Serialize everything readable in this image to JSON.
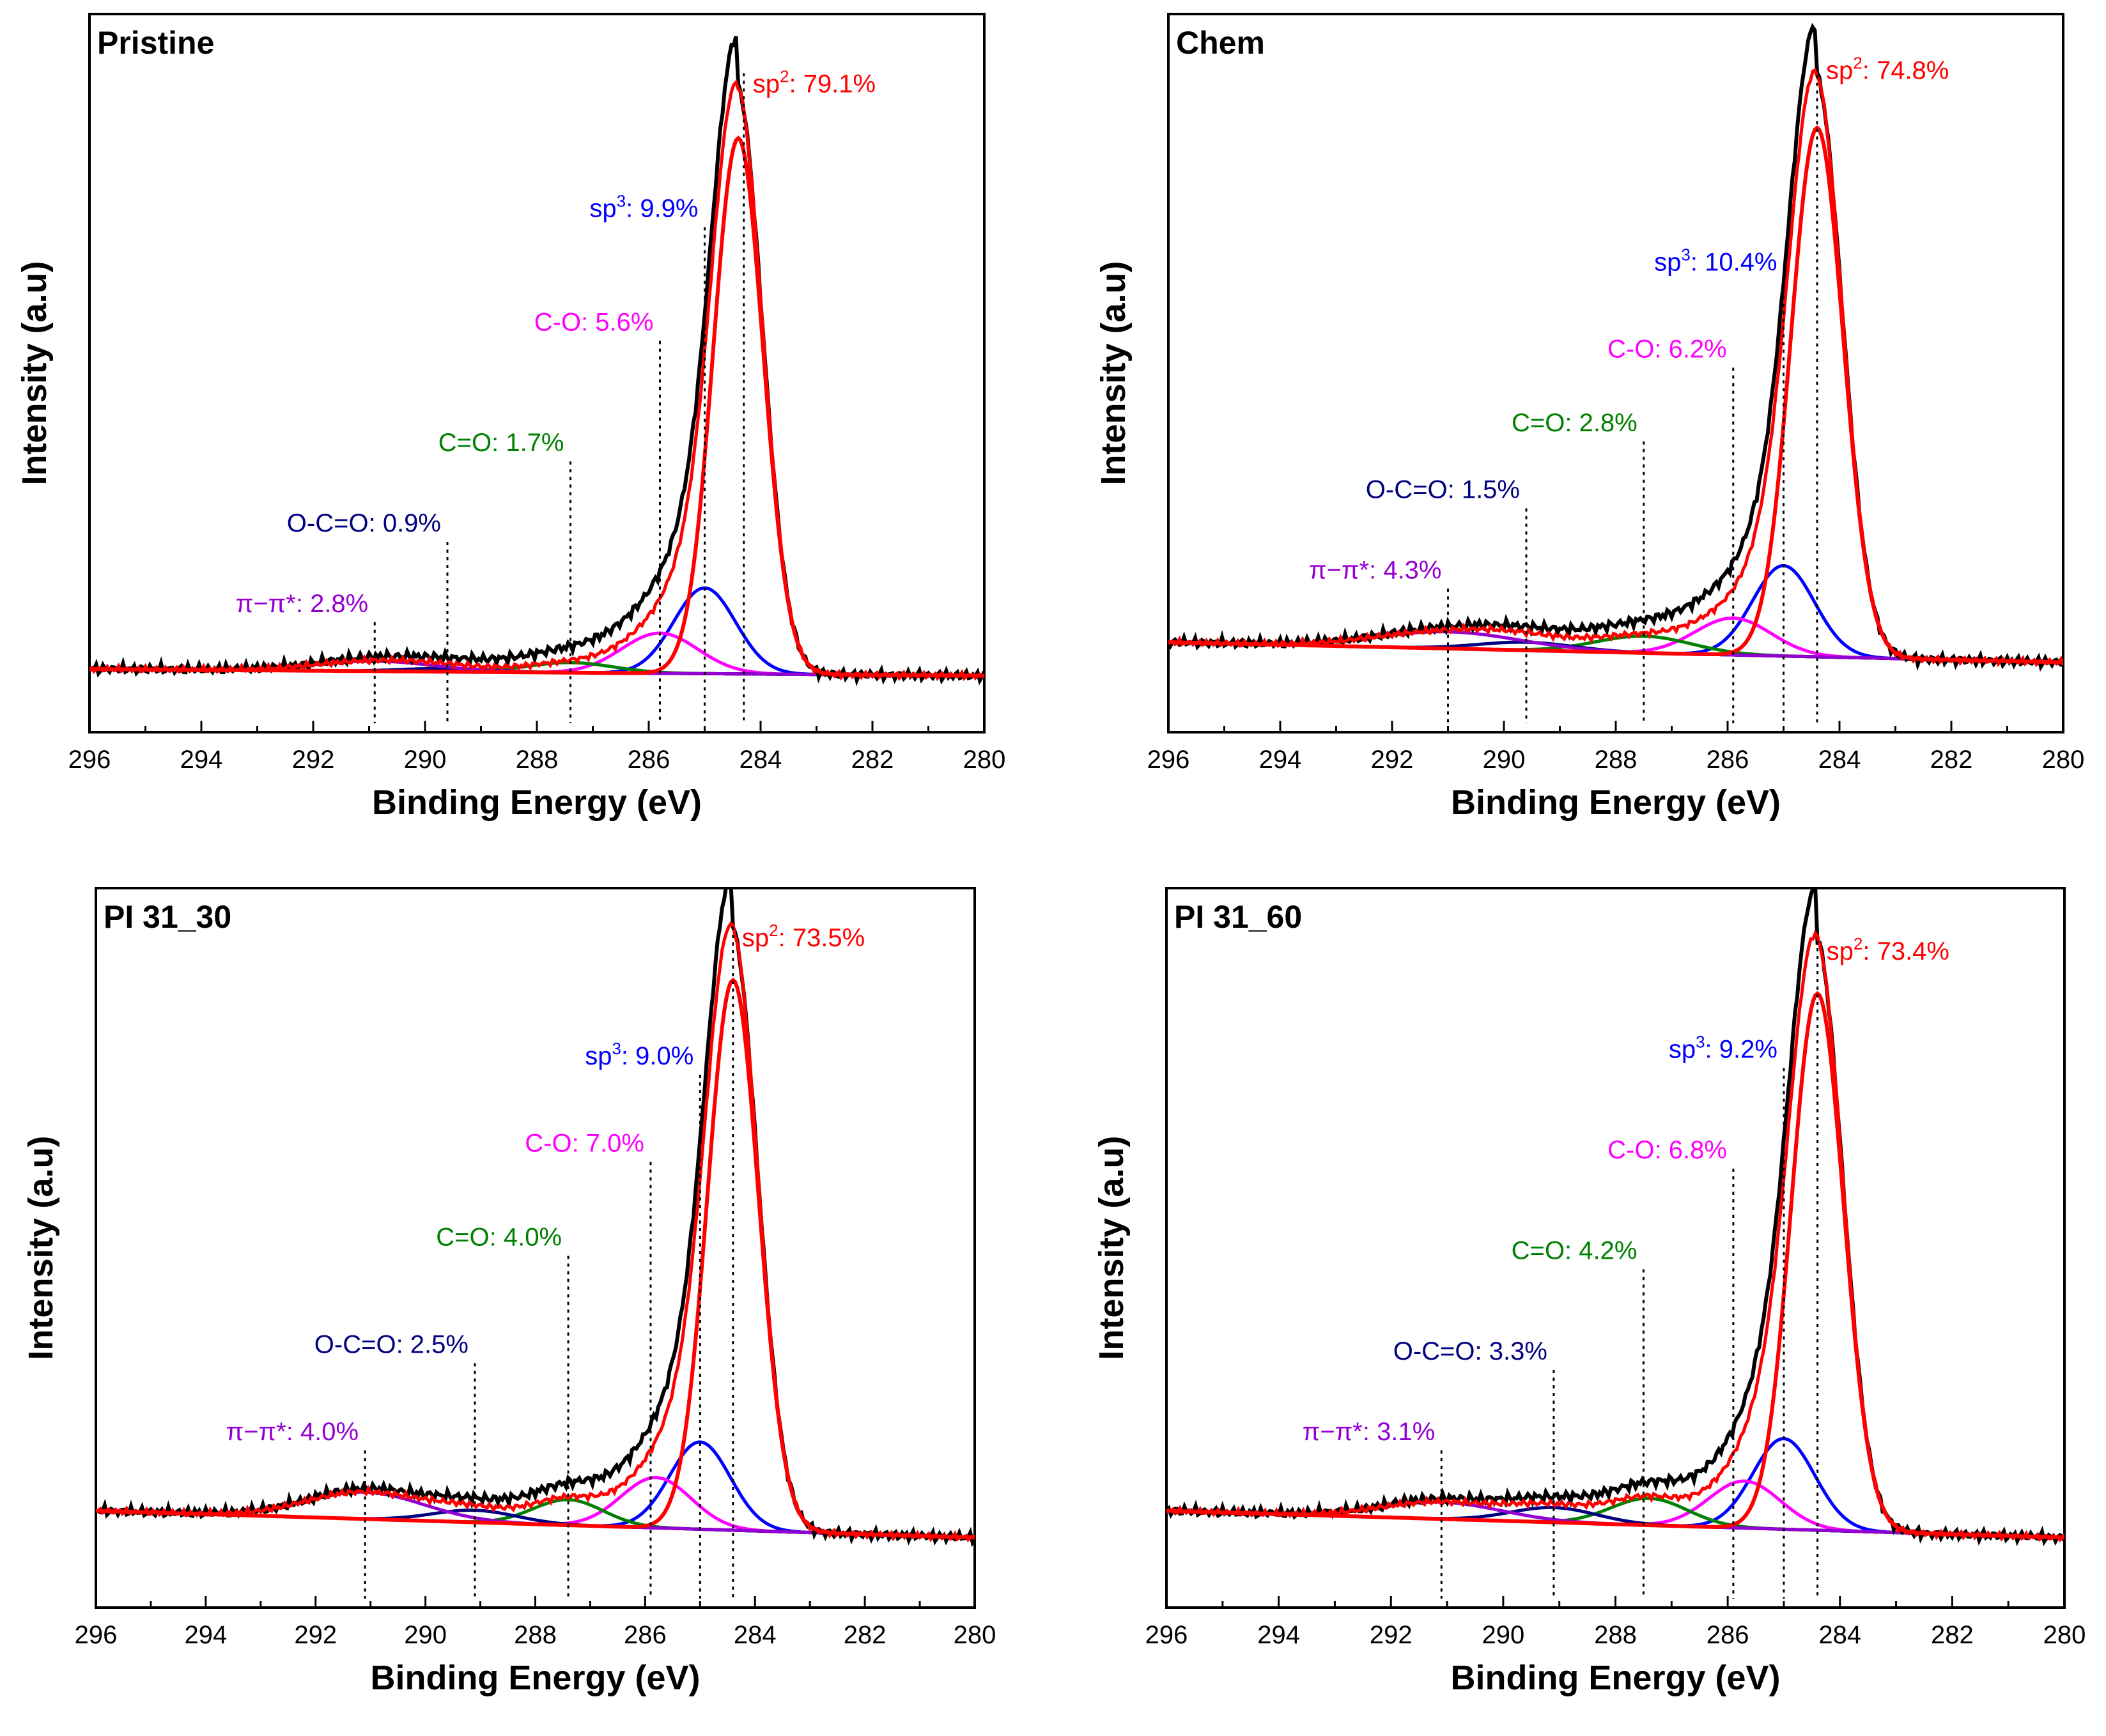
{
  "chart_data": [
    {
      "type": "line",
      "title": "Pristine",
      "xlabel": "Binding Energy (eV)",
      "ylabel": "Intensity (a.u)",
      "xlim": [
        296,
        280
      ],
      "xticks": [
        "296",
        "294",
        "292",
        "290",
        "288",
        "286",
        "284",
        "282",
        "280"
      ],
      "baseline": [
        0.06,
        0.05
      ],
      "series": [
        {
          "name": "sp2",
          "center": 284.4,
          "fwhm": 1.05,
          "height": 0.8
        },
        {
          "name": "sp3",
          "center": 285.0,
          "fwhm": 1.3,
          "height": 0.128
        },
        {
          "name": "C-O",
          "center": 285.8,
          "fwhm": 1.6,
          "height": 0.06
        },
        {
          "name": "C=O",
          "center": 287.4,
          "fwhm": 1.8,
          "height": 0.015
        },
        {
          "name": "O-C=O",
          "center": 289.6,
          "fwhm": 1.8,
          "height": 0.005
        },
        {
          "name": "π−π*",
          "center": 290.9,
          "fwhm": 2.5,
          "height": 0.015
        }
      ],
      "peaks": [
        {
          "name": "sp2",
          "prefix": "sp",
          "sup": "2",
          "suffix": ": 79.1%",
          "x": 284.3,
          "top": 0.95,
          "color": "#ff0000"
        },
        {
          "name": "sp3",
          "prefix": "sp",
          "sup": "3",
          "suffix": ": 9.9%",
          "x": 285.0,
          "top": 0.72,
          "color": "#0000ff"
        },
        {
          "name": "C-O",
          "prefix": "C-O",
          "sup": "",
          "suffix": ": 5.6%",
          "x": 285.8,
          "top": 0.55,
          "color": "#ff00ff"
        },
        {
          "name": "C=O",
          "prefix": "C=O",
          "sup": "",
          "suffix": ": 1.7%",
          "x": 287.4,
          "top": 0.37,
          "color": "#008000"
        },
        {
          "name": "O-C=O",
          "prefix": "O-C=O",
          "sup": "",
          "suffix": ": 0.9%",
          "x": 289.6,
          "top": 0.25,
          "color": "#000080"
        },
        {
          "name": "π−π*",
          "prefix": "π−π*",
          "sup": "",
          "suffix": ": 2.8%",
          "x": 290.9,
          "top": 0.13,
          "color": "#9400d3"
        }
      ]
    },
    {
      "type": "line",
      "title": "Chem",
      "xlabel": "Binding Energy (eV)",
      "ylabel": "Intensity (a.u)",
      "xlim": [
        296,
        280
      ],
      "xticks": [
        "296",
        "294",
        "292",
        "290",
        "288",
        "286",
        "284",
        "282",
        "280"
      ],
      "baseline": [
        0.1,
        0.07
      ],
      "series": [
        {
          "name": "sp2",
          "center": 284.4,
          "fwhm": 1.1,
          "height": 0.79
        },
        {
          "name": "sp3",
          "center": 285.0,
          "fwhm": 1.3,
          "height": 0.135
        },
        {
          "name": "C-O",
          "center": 285.9,
          "fwhm": 1.6,
          "height": 0.055
        },
        {
          "name": "C=O",
          "center": 287.5,
          "fwhm": 2.0,
          "height": 0.025
        },
        {
          "name": "O-C=O",
          "center": 289.6,
          "fwhm": 2.0,
          "height": 0.012
        },
        {
          "name": "π−π*",
          "center": 291.0,
          "fwhm": 3.0,
          "height": 0.025
        }
      ],
      "peaks": [
        {
          "name": "sp2",
          "prefix": "sp",
          "sup": "2",
          "suffix": ": 74.8%",
          "x": 284.4,
          "top": 0.97,
          "color": "#ff0000"
        },
        {
          "name": "sp3",
          "prefix": "sp",
          "sup": "3",
          "suffix": ": 10.4%",
          "x": 285.0,
          "top": 0.64,
          "color": "#0000ff"
        },
        {
          "name": "C-O",
          "prefix": "C-O",
          "sup": "",
          "suffix": ": 6.2%",
          "x": 285.9,
          "top": 0.51,
          "color": "#ff00ff"
        },
        {
          "name": "C=O",
          "prefix": "C=O",
          "sup": "",
          "suffix": ": 2.8%",
          "x": 287.5,
          "top": 0.4,
          "color": "#008000"
        },
        {
          "name": "O-C=O",
          "prefix": "O-C=O",
          "sup": "",
          "suffix": ": 1.5%",
          "x": 289.6,
          "top": 0.3,
          "color": "#000080"
        },
        {
          "name": "π−π*",
          "prefix": "π−π*",
          "sup": "",
          "suffix": ": 4.3%",
          "x": 291.0,
          "top": 0.18,
          "color": "#9400d3"
        }
      ]
    },
    {
      "type": "line",
      "title": "PI 31_30",
      "xlabel": "Binding Energy (eV)",
      "ylabel": "Intensity (a.u)",
      "xlim": [
        296,
        280
      ],
      "xticks": [
        "296",
        "294",
        "292",
        "290",
        "288",
        "286",
        "284",
        "282",
        "280"
      ],
      "baseline": [
        0.11,
        0.07
      ],
      "series": [
        {
          "name": "sp2",
          "center": 284.4,
          "fwhm": 1.1,
          "height": 0.82
        },
        {
          "name": "sp3",
          "center": 285.0,
          "fwhm": 1.3,
          "height": 0.13
        },
        {
          "name": "C-O",
          "center": 285.8,
          "fwhm": 1.5,
          "height": 0.075
        },
        {
          "name": "C=O",
          "center": 287.4,
          "fwhm": 1.5,
          "height": 0.038
        },
        {
          "name": "O-C=O",
          "center": 289.1,
          "fwhm": 1.8,
          "height": 0.018
        },
        {
          "name": "π−π*",
          "center": 291.1,
          "fwhm": 2.5,
          "height": 0.04
        }
      ],
      "peaks": [
        {
          "name": "sp2",
          "prefix": "sp",
          "sup": "2",
          "suffix": ": 73.5%",
          "x": 284.4,
          "top": 0.98,
          "color": "#ff0000"
        },
        {
          "name": "sp3",
          "prefix": "sp",
          "sup": "3",
          "suffix": ": 9.0%",
          "x": 285.0,
          "top": 0.76,
          "color": "#0000ff"
        },
        {
          "name": "C-O",
          "prefix": "C-O",
          "sup": "",
          "suffix": ": 7.0%",
          "x": 285.9,
          "top": 0.63,
          "color": "#ff00ff"
        },
        {
          "name": "C=O",
          "prefix": "C=O",
          "sup": "",
          "suffix": ": 4.0%",
          "x": 287.4,
          "top": 0.49,
          "color": "#008000"
        },
        {
          "name": "O-C=O",
          "prefix": "O-C=O",
          "sup": "",
          "suffix": ": 2.5%",
          "x": 289.1,
          "top": 0.33,
          "color": "#000080"
        },
        {
          "name": "π−π*",
          "prefix": "π−π*",
          "sup": "",
          "suffix": ": 4.0%",
          "x": 291.1,
          "top": 0.2,
          "color": "#9400d3"
        }
      ]
    },
    {
      "type": "line",
      "title": "PI 31_60",
      "xlabel": "Binding Energy (eV)",
      "ylabel": "Intensity (a.u)",
      "xlim": [
        296,
        280
      ],
      "xticks": [
        "296",
        "294",
        "292",
        "290",
        "288",
        "286",
        "284",
        "282",
        "280"
      ],
      "baseline": [
        0.11,
        0.07
      ],
      "series": [
        {
          "name": "sp2",
          "center": 284.4,
          "fwhm": 1.1,
          "height": 0.8
        },
        {
          "name": "sp3",
          "center": 285.0,
          "fwhm": 1.3,
          "height": 0.135
        },
        {
          "name": "C-O",
          "center": 285.7,
          "fwhm": 1.5,
          "height": 0.07
        },
        {
          "name": "C=O",
          "center": 287.4,
          "fwhm": 1.6,
          "height": 0.04
        },
        {
          "name": "O-C=O",
          "center": 289.1,
          "fwhm": 1.8,
          "height": 0.022
        },
        {
          "name": "π−π*",
          "center": 291.1,
          "fwhm": 2.5,
          "height": 0.025
        }
      ],
      "peaks": [
        {
          "name": "sp2",
          "prefix": "sp",
          "sup": "2",
          "suffix": ": 73.4%",
          "x": 284.4,
          "top": 0.96,
          "color": "#ff0000"
        },
        {
          "name": "sp3",
          "prefix": "sp",
          "sup": "3",
          "suffix": ": 9.2%",
          "x": 285.0,
          "top": 0.77,
          "color": "#0000ff"
        },
        {
          "name": "C-O",
          "prefix": "C-O",
          "sup": "",
          "suffix": ": 6.8%",
          "x": 285.9,
          "top": 0.62,
          "color": "#ff00ff"
        },
        {
          "name": "C=O",
          "prefix": "C=O",
          "sup": "",
          "suffix": ": 4.2%",
          "x": 287.5,
          "top": 0.47,
          "color": "#008000"
        },
        {
          "name": "O-C=O",
          "prefix": "O-C=O",
          "sup": "",
          "suffix": ": 3.3%",
          "x": 289.1,
          "top": 0.32,
          "color": "#000080"
        },
        {
          "name": "π−π*",
          "prefix": "π−π*",
          "sup": "",
          "suffix": ": 3.1%",
          "x": 291.1,
          "top": 0.2,
          "color": "#9400d3"
        }
      ]
    }
  ],
  "curve_colors": {
    "envelope": "#000000",
    "sp2": "#ff0000",
    "sp3": "#0000ff",
    "C-O": "#ff00ff",
    "C=O": "#008000",
    "O-C=O": "#000080",
    "π−π*": "#9400d3",
    "background": "#800080"
  }
}
